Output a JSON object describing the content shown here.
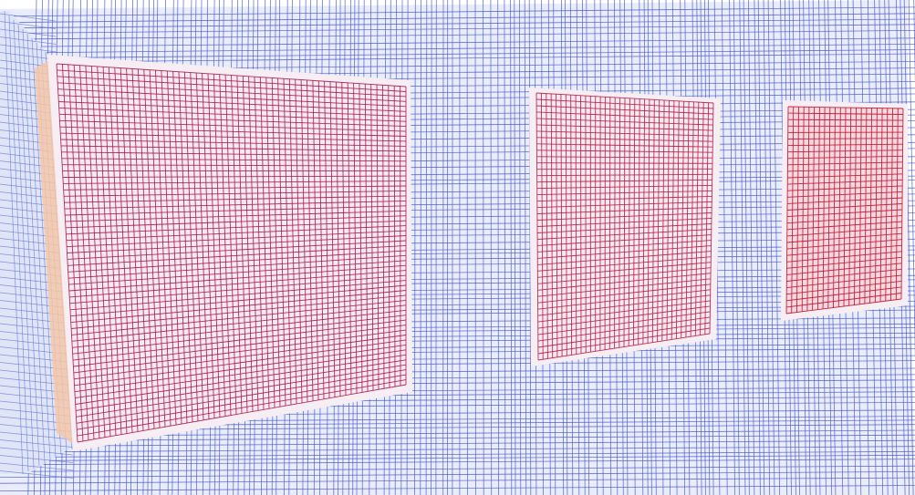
{
  "scene": {
    "kind": "3d-wireframe-mesh-render",
    "colormap": "cool-to-warm",
    "colors": {
      "background": "#ffffff",
      "cold": "#3b4cc0",
      "mid": "#dddddd",
      "warm": "#b40426",
      "warm_dark": "#8b0a50"
    },
    "regions": [
      {
        "name": "left-heated-panel",
        "temperature": "high"
      },
      {
        "name": "middle-heated-panel",
        "temperature": "high"
      },
      {
        "name": "right-heated-panel",
        "temperature": "high"
      },
      {
        "name": "surrounding-wall",
        "temperature": "low"
      }
    ]
  }
}
